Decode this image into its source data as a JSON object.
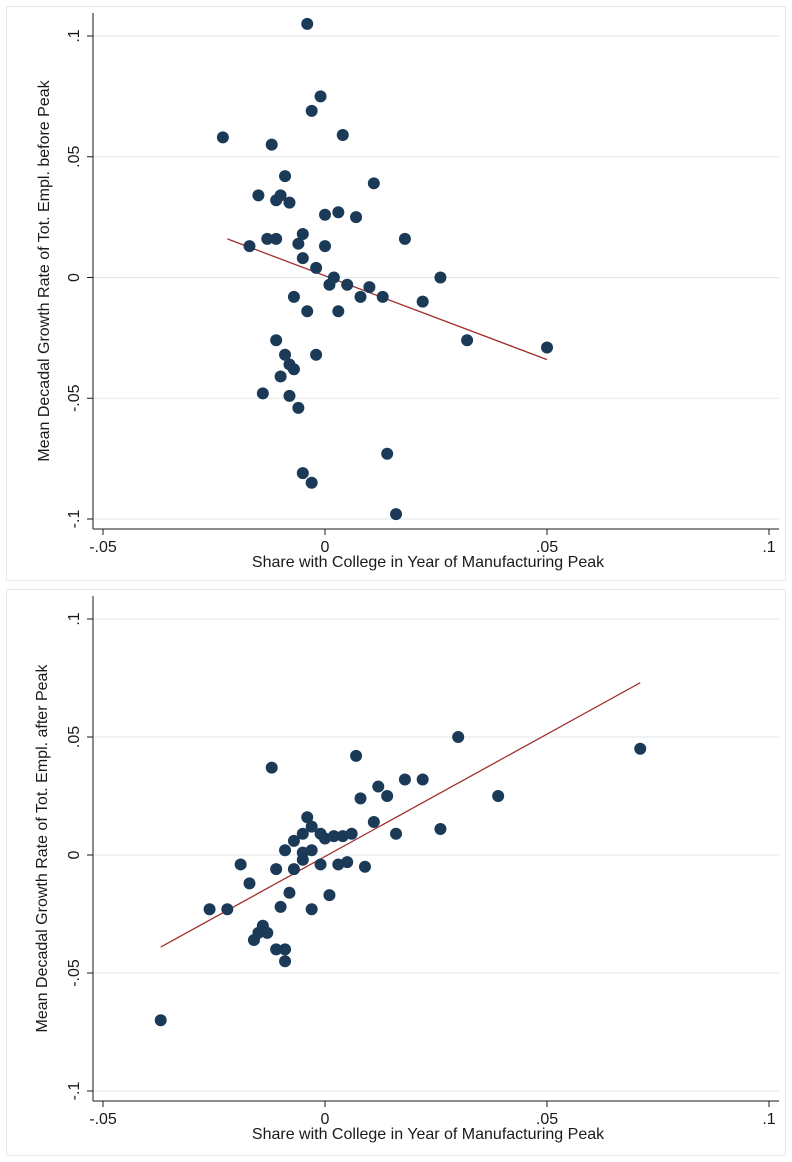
{
  "colors": {
    "marker": "#1b3a57",
    "fit_line": "#a0302e",
    "grid": "#dfe7ec",
    "axis": "#1a1a1a",
    "background": "#ffffff"
  },
  "chart_data": [
    {
      "type": "scatter",
      "title": "",
      "xlabel": "Share with College in Year of Manufacturing Peak",
      "ylabel": "Mean Decadal Growth Rate of Tot. Empl. before Peak",
      "xlim": [
        -0.05,
        0.1
      ],
      "ylim": [
        -0.1,
        0.1
      ],
      "xticks": [
        -0.05,
        0,
        0.05,
        0.1
      ],
      "xtick_labels": [
        "-.05",
        "0",
        ".05",
        ".1"
      ],
      "yticks": [
        -0.1,
        -0.05,
        0,
        0.05,
        0.1
      ],
      "ytick_labels": [
        "-.1",
        "-.05",
        "0",
        ".05",
        ".1"
      ],
      "grid": true,
      "fit_line": {
        "x": [
          -0.022,
          0.05
        ],
        "y": [
          0.016,
          -0.034
        ]
      },
      "points": [
        {
          "x": -0.004,
          "y": 0.105
        },
        {
          "x": -0.001,
          "y": 0.075
        },
        {
          "x": -0.003,
          "y": 0.069
        },
        {
          "x": -0.023,
          "y": 0.058
        },
        {
          "x": -0.012,
          "y": 0.055
        },
        {
          "x": 0.004,
          "y": 0.059
        },
        {
          "x": -0.009,
          "y": 0.042
        },
        {
          "x": 0.011,
          "y": 0.039
        },
        {
          "x": -0.015,
          "y": 0.034
        },
        {
          "x": -0.01,
          "y": 0.034
        },
        {
          "x": -0.011,
          "y": 0.032
        },
        {
          "x": -0.008,
          "y": 0.031
        },
        {
          "x": 0.0,
          "y": 0.026
        },
        {
          "x": 0.003,
          "y": 0.027
        },
        {
          "x": 0.007,
          "y": 0.025
        },
        {
          "x": -0.005,
          "y": 0.018
        },
        {
          "x": -0.013,
          "y": 0.016
        },
        {
          "x": -0.011,
          "y": 0.016
        },
        {
          "x": 0.018,
          "y": 0.016
        },
        {
          "x": -0.006,
          "y": 0.014
        },
        {
          "x": -0.017,
          "y": 0.013
        },
        {
          "x": 0.0,
          "y": 0.013
        },
        {
          "x": -0.005,
          "y": 0.008
        },
        {
          "x": -0.002,
          "y": 0.004
        },
        {
          "x": 0.002,
          "y": 0.0
        },
        {
          "x": 0.026,
          "y": 0.0
        },
        {
          "x": 0.001,
          "y": -0.003
        },
        {
          "x": 0.005,
          "y": -0.003
        },
        {
          "x": 0.01,
          "y": -0.004
        },
        {
          "x": -0.007,
          "y": -0.008
        },
        {
          "x": 0.008,
          "y": -0.008
        },
        {
          "x": 0.013,
          "y": -0.008
        },
        {
          "x": 0.022,
          "y": -0.01
        },
        {
          "x": -0.004,
          "y": -0.014
        },
        {
          "x": 0.003,
          "y": -0.014
        },
        {
          "x": -0.011,
          "y": -0.026
        },
        {
          "x": 0.032,
          "y": -0.026
        },
        {
          "x": 0.05,
          "y": -0.029
        },
        {
          "x": -0.009,
          "y": -0.032
        },
        {
          "x": -0.002,
          "y": -0.032
        },
        {
          "x": -0.008,
          "y": -0.036
        },
        {
          "x": -0.007,
          "y": -0.038
        },
        {
          "x": -0.01,
          "y": -0.041
        },
        {
          "x": -0.014,
          "y": -0.048
        },
        {
          "x": -0.008,
          "y": -0.049
        },
        {
          "x": -0.006,
          "y": -0.054
        },
        {
          "x": 0.014,
          "y": -0.073
        },
        {
          "x": -0.005,
          "y": -0.081
        },
        {
          "x": -0.003,
          "y": -0.085
        },
        {
          "x": 0.016,
          "y": -0.098
        }
      ]
    },
    {
      "type": "scatter",
      "title": "",
      "xlabel": "Share with College in Year of Manufacturing Peak",
      "ylabel": "Mean Decadal Growth Rate of Tot. Empl. after Peak",
      "xlim": [
        -0.05,
        0.1
      ],
      "ylim": [
        -0.1,
        0.1
      ],
      "xticks": [
        -0.05,
        0,
        0.05,
        0.1
      ],
      "xtick_labels": [
        "-.05",
        "0",
        ".05",
        ".1"
      ],
      "yticks": [
        -0.1,
        -0.05,
        0,
        0.05,
        0.1
      ],
      "ytick_labels": [
        "-.1",
        "-.05",
        "0",
        ".05",
        ".1"
      ],
      "grid": true,
      "fit_line": {
        "x": [
          -0.037,
          0.071
        ],
        "y": [
          -0.039,
          0.073
        ]
      },
      "points": [
        {
          "x": 0.03,
          "y": 0.05
        },
        {
          "x": 0.071,
          "y": 0.045
        },
        {
          "x": 0.007,
          "y": 0.042
        },
        {
          "x": -0.012,
          "y": 0.037
        },
        {
          "x": 0.018,
          "y": 0.032
        },
        {
          "x": 0.022,
          "y": 0.032
        },
        {
          "x": 0.012,
          "y": 0.029
        },
        {
          "x": 0.039,
          "y": 0.025
        },
        {
          "x": 0.008,
          "y": 0.024
        },
        {
          "x": 0.014,
          "y": 0.025
        },
        {
          "x": -0.004,
          "y": 0.016
        },
        {
          "x": 0.011,
          "y": 0.014
        },
        {
          "x": -0.003,
          "y": 0.012
        },
        {
          "x": 0.026,
          "y": 0.011
        },
        {
          "x": -0.005,
          "y": 0.009
        },
        {
          "x": -0.001,
          "y": 0.009
        },
        {
          "x": 0.016,
          "y": 0.009
        },
        {
          "x": -0.007,
          "y": 0.006
        },
        {
          "x": 0.0,
          "y": 0.007
        },
        {
          "x": 0.002,
          "y": 0.008
        },
        {
          "x": 0.004,
          "y": 0.008
        },
        {
          "x": 0.006,
          "y": 0.009
        },
        {
          "x": -0.009,
          "y": 0.002
        },
        {
          "x": -0.005,
          "y": 0.001
        },
        {
          "x": -0.003,
          "y": 0.002
        },
        {
          "x": -0.005,
          "y": -0.002
        },
        {
          "x": -0.001,
          "y": -0.004
        },
        {
          "x": 0.003,
          "y": -0.004
        },
        {
          "x": 0.005,
          "y": -0.003
        },
        {
          "x": 0.009,
          "y": -0.005
        },
        {
          "x": -0.019,
          "y": -0.004
        },
        {
          "x": -0.011,
          "y": -0.006
        },
        {
          "x": -0.007,
          "y": -0.006
        },
        {
          "x": -0.017,
          "y": -0.012
        },
        {
          "x": -0.008,
          "y": -0.016
        },
        {
          "x": 0.001,
          "y": -0.017
        },
        {
          "x": -0.026,
          "y": -0.023
        },
        {
          "x": -0.022,
          "y": -0.023
        },
        {
          "x": -0.01,
          "y": -0.022
        },
        {
          "x": -0.003,
          "y": -0.023
        },
        {
          "x": -0.014,
          "y": -0.03
        },
        {
          "x": -0.015,
          "y": -0.033
        },
        {
          "x": -0.013,
          "y": -0.033
        },
        {
          "x": -0.016,
          "y": -0.036
        },
        {
          "x": -0.011,
          "y": -0.04
        },
        {
          "x": -0.009,
          "y": -0.04
        },
        {
          "x": -0.009,
          "y": -0.045
        },
        {
          "x": -0.037,
          "y": -0.07
        }
      ]
    }
  ]
}
